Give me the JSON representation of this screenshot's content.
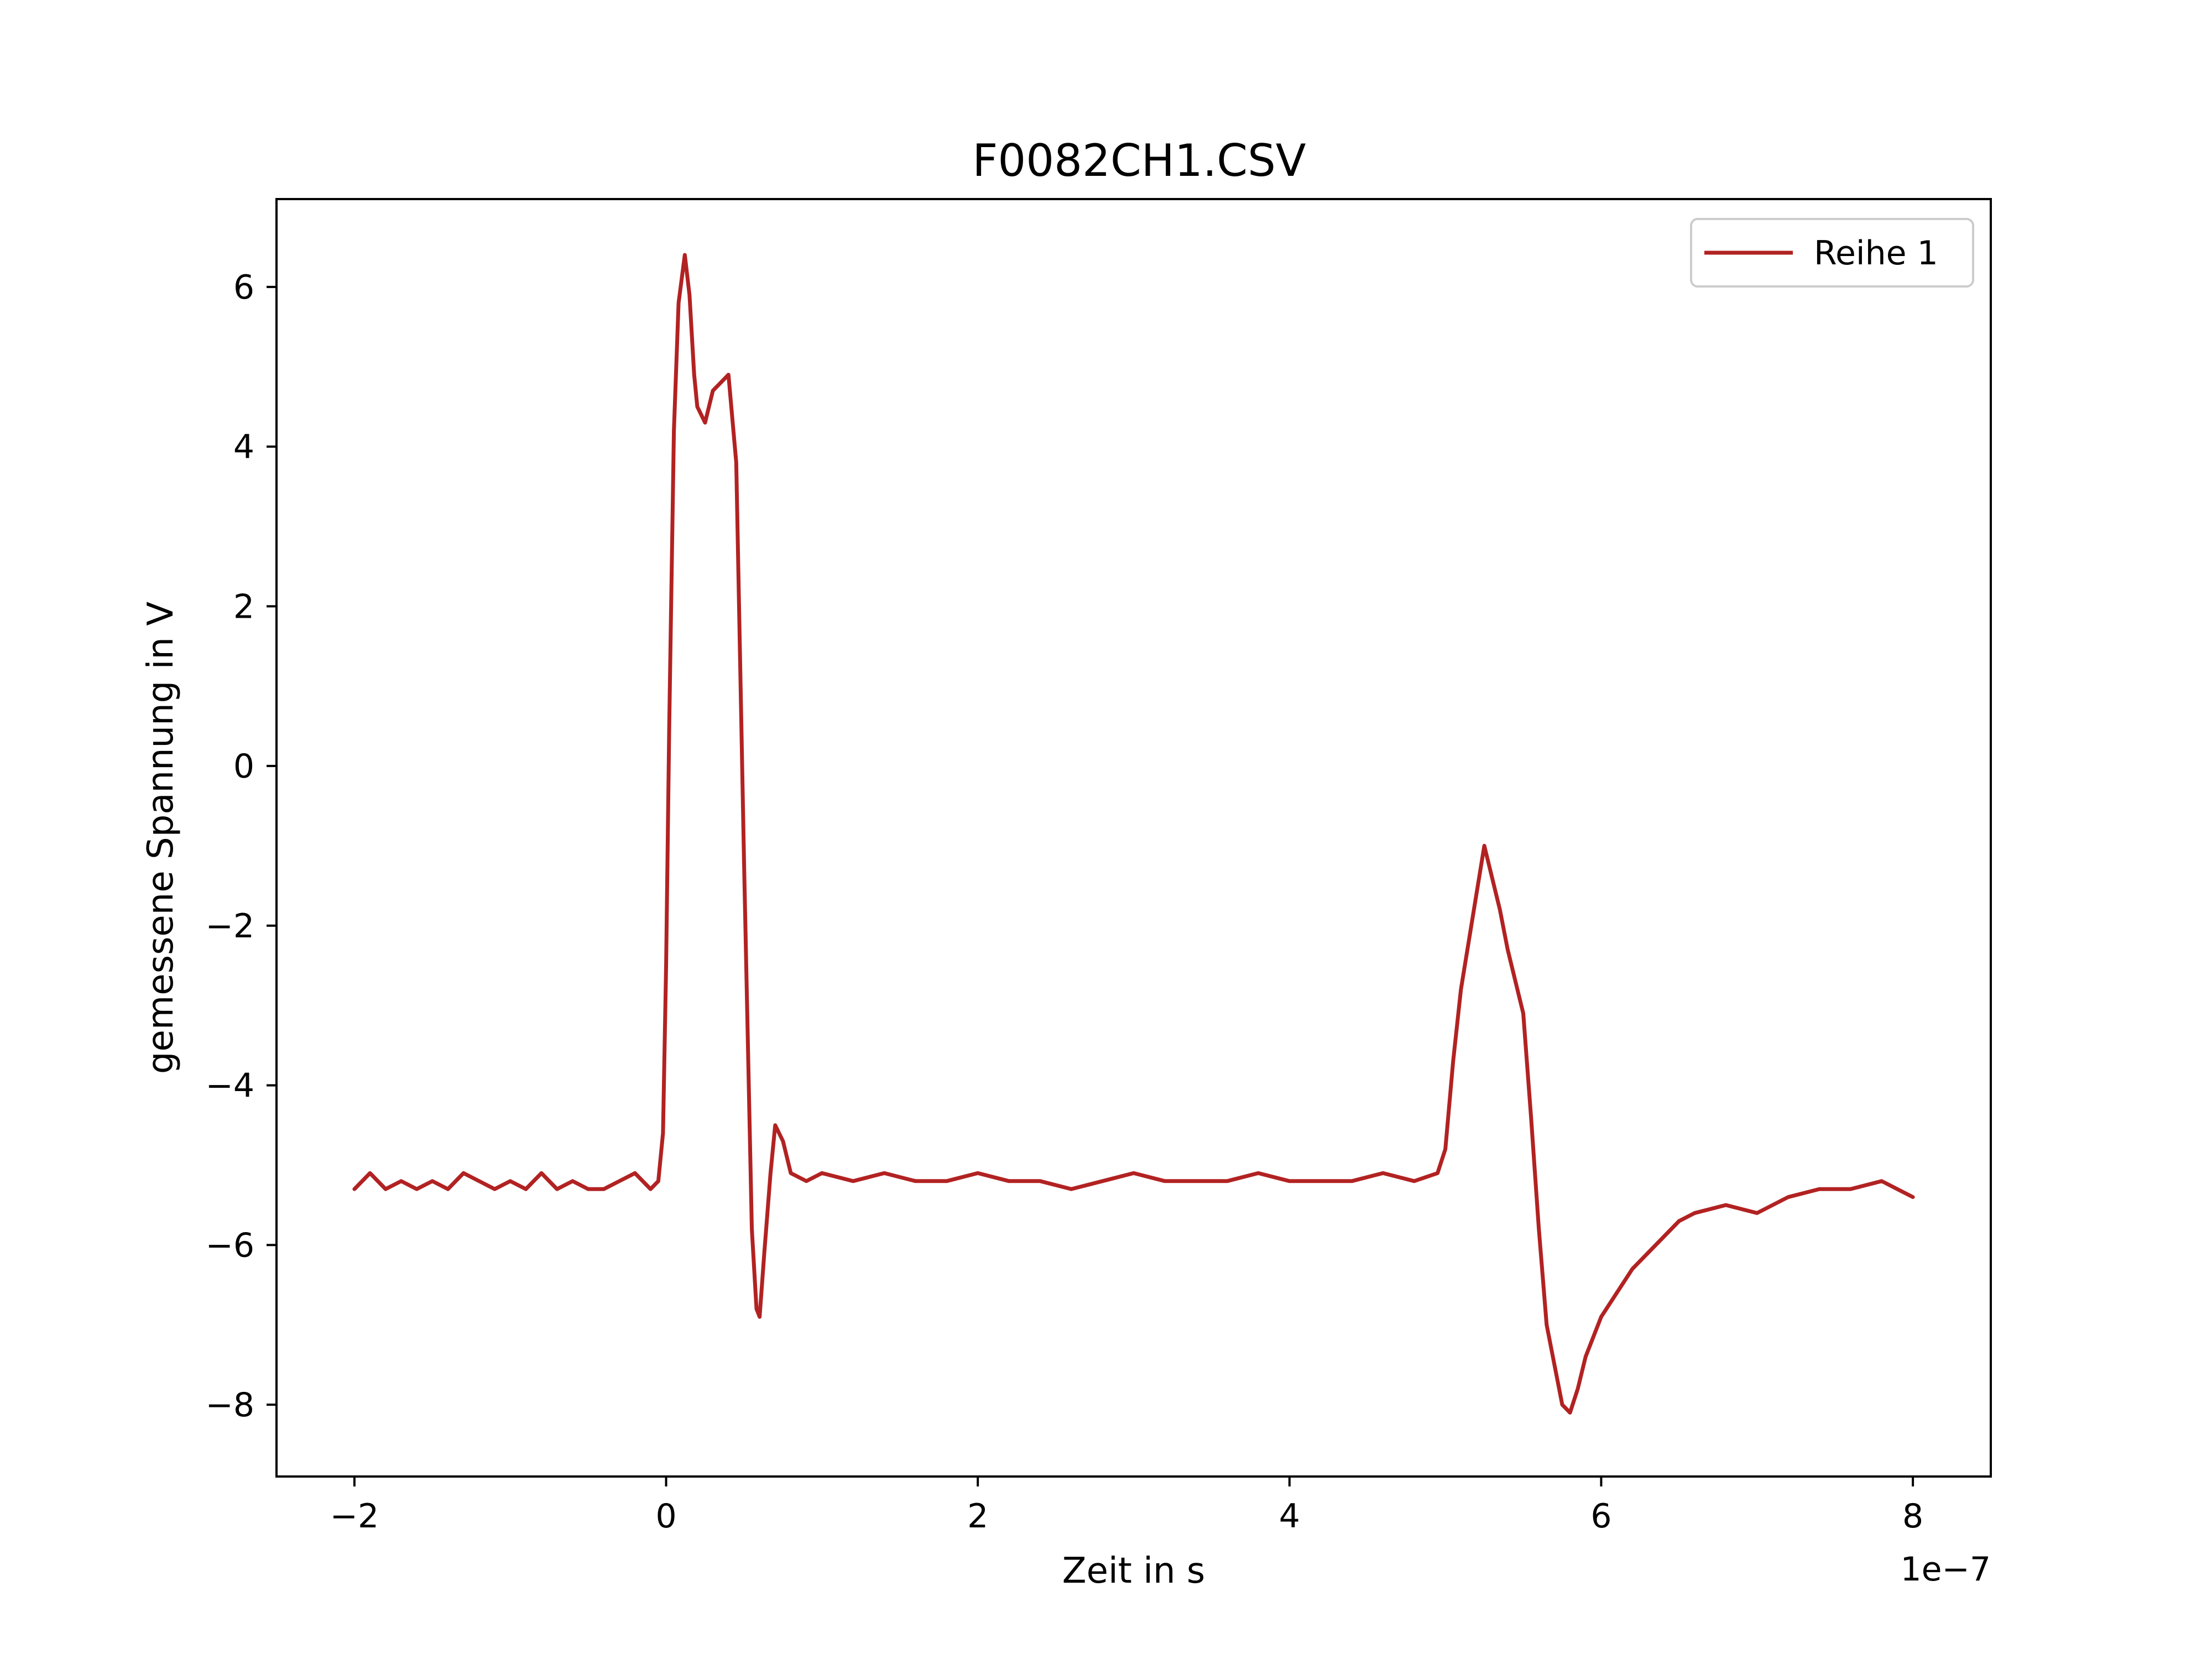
{
  "chart_data": {
    "type": "line",
    "title": "F0082CH1.CSV",
    "xlabel": "Zeit in s",
    "ylabel": "gemessene Spannung in V",
    "x_offset_text": "1e−7",
    "x_scale": 1e-07,
    "xlim": [
      -2.5e-07,
      8.5e-07
    ],
    "ylim": [
      -8.9,
      7.1
    ],
    "grid": false,
    "legend_position": "top-right",
    "x_ticks": [
      -2e-07,
      0,
      2e-07,
      4e-07,
      6e-07,
      8e-07
    ],
    "x_tick_labels": [
      "−2",
      "0",
      "2",
      "4",
      "6",
      "8"
    ],
    "y_ticks": [
      -8,
      -6,
      -4,
      -2,
      0,
      2,
      4,
      6
    ],
    "y_tick_labels": [
      "−8",
      "−6",
      "−4",
      "−2",
      "0",
      "2",
      "4",
      "6"
    ],
    "series": [
      {
        "name": "Reihe 1",
        "color": "#b22222",
        "x": [
          -2e-07,
          -1.9e-07,
          -1.8e-07,
          -1.7e-07,
          -1.6e-07,
          -1.5e-07,
          -1.4e-07,
          -1.3e-07,
          -1.2e-07,
          -1.1e-07,
          -1e-07,
          -9e-08,
          -8e-08,
          -7e-08,
          -6e-08,
          -5e-08,
          -4e-08,
          -3e-08,
          -2e-08,
          -1e-08,
          -5e-09,
          -2e-09,
          0.0,
          2e-09,
          5e-09,
          8e-09,
          1e-08,
          1.2e-08,
          1.5e-08,
          1.8e-08,
          2e-08,
          2.5e-08,
          3e-08,
          3.5e-08,
          4e-08,
          4.5e-08,
          5e-08,
          5.5e-08,
          5.8e-08,
          6e-08,
          6.3e-08,
          6.7e-08,
          7e-08,
          7.5e-08,
          8e-08,
          9e-08,
          1e-07,
          1.2e-07,
          1.4e-07,
          1.6e-07,
          1.8e-07,
          2e-07,
          2.2e-07,
          2.4e-07,
          2.6e-07,
          2.8e-07,
          3e-07,
          3.2e-07,
          3.4e-07,
          3.6e-07,
          3.8e-07,
          4e-07,
          4.2e-07,
          4.4e-07,
          4.6e-07,
          4.8e-07,
          4.95e-07,
          5e-07,
          5.05e-07,
          5.1e-07,
          5.15e-07,
          5.2e-07,
          5.25e-07,
          5.3e-07,
          5.35e-07,
          5.4e-07,
          5.45e-07,
          5.5e-07,
          5.55e-07,
          5.6e-07,
          5.65e-07,
          5.7e-07,
          5.75e-07,
          5.8e-07,
          5.85e-07,
          5.9e-07,
          6e-07,
          6.1e-07,
          6.2e-07,
          6.3e-07,
          6.4e-07,
          6.5e-07,
          6.6e-07,
          6.8e-07,
          7e-07,
          7.2e-07,
          7.4e-07,
          7.6e-07,
          7.8e-07,
          8e-07
        ],
        "y": [
          -5.3,
          -5.1,
          -5.3,
          -5.2,
          -5.3,
          -5.2,
          -5.3,
          -5.1,
          -5.2,
          -5.3,
          -5.2,
          -5.3,
          -5.1,
          -5.3,
          -5.2,
          -5.3,
          -5.3,
          -5.2,
          -5.1,
          -5.3,
          -5.2,
          -4.6,
          -2.5,
          0.5,
          4.2,
          5.8,
          6.1,
          6.4,
          5.9,
          4.9,
          4.5,
          4.3,
          4.7,
          4.8,
          4.9,
          3.8,
          -1.2,
          -5.8,
          -6.8,
          -6.9,
          -6.1,
          -5.1,
          -4.5,
          -4.7,
          -5.1,
          -5.2,
          -5.1,
          -5.2,
          -5.1,
          -5.2,
          -5.2,
          -5.1,
          -5.2,
          -5.2,
          -5.3,
          -5.2,
          -5.1,
          -5.2,
          -5.2,
          -5.2,
          -5.1,
          -5.2,
          -5.2,
          -5.2,
          -5.1,
          -5.2,
          -5.1,
          -4.8,
          -3.7,
          -2.8,
          -2.2,
          -1.6,
          -1.0,
          -1.4,
          -1.8,
          -2.3,
          -2.7,
          -3.1,
          -4.4,
          -5.8,
          -7.0,
          -7.5,
          -8.0,
          -8.1,
          -7.8,
          -7.4,
          -6.9,
          -6.6,
          -6.3,
          -6.1,
          -5.9,
          -5.7,
          -5.6,
          -5.5,
          -5.6,
          -5.4,
          -5.3,
          -5.3,
          -5.2,
          -5.4
        ]
      }
    ]
  }
}
